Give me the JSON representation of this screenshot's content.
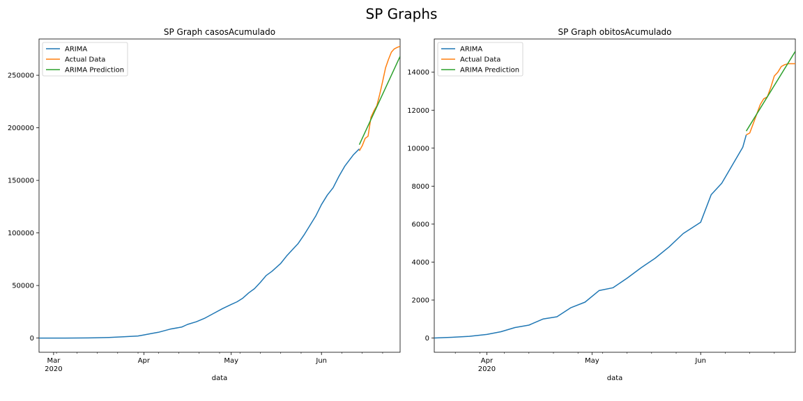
{
  "figure": {
    "suptitle": "SP Graphs"
  },
  "chart_data": [
    {
      "type": "line",
      "title": "SP Graph casosAcumulado",
      "xlabel": "data",
      "ylabel": "",
      "xlim": [
        "2020-02-25",
        "2020-06-28"
      ],
      "ylim": [
        -13500,
        284500
      ],
      "grid": false,
      "legend": "top-left",
      "x_ticks": [
        {
          "date": "2020-03-01",
          "label": "Mar",
          "sublabel": "2020"
        },
        {
          "date": "2020-04-01",
          "label": "Apr",
          "sublabel": ""
        },
        {
          "date": "2020-05-01",
          "label": "May",
          "sublabel": ""
        },
        {
          "date": "2020-06-01",
          "label": "Jun",
          "sublabel": ""
        }
      ],
      "y_ticks": [
        0,
        50000,
        100000,
        150000,
        200000,
        250000
      ],
      "y_tick_labels": [
        "0",
        "50000",
        "100000",
        "150000",
        "200000",
        "250000"
      ],
      "series": [
        {
          "name": "ARIMA",
          "color": "#1f77b4",
          "x": [
            "2020-02-25",
            "2020-03-05",
            "2020-03-15",
            "2020-03-20",
            "2020-03-25",
            "2020-03-30",
            "2020-04-01",
            "2020-04-04",
            "2020-04-06",
            "2020-04-10",
            "2020-04-14",
            "2020-04-16",
            "2020-04-19",
            "2020-04-22",
            "2020-04-25",
            "2020-04-28",
            "2020-05-01",
            "2020-05-03",
            "2020-05-05",
            "2020-05-07",
            "2020-05-09",
            "2020-05-11",
            "2020-05-13",
            "2020-05-15",
            "2020-05-18",
            "2020-05-20",
            "2020-05-22",
            "2020-05-24",
            "2020-05-26",
            "2020-05-28",
            "2020-05-30",
            "2020-06-01",
            "2020-06-03",
            "2020-06-05",
            "2020-06-07",
            "2020-06-09",
            "2020-06-12",
            "2020-06-14"
          ],
          "y": [
            0,
            0,
            200,
            600,
            1200,
            2000,
            3000,
            4500,
            5500,
            8500,
            10500,
            13000,
            15500,
            19000,
            23500,
            28000,
            32000,
            34500,
            38000,
            43000,
            47000,
            53000,
            59500,
            63500,
            71000,
            78000,
            84000,
            90000,
            98000,
            107000,
            116000,
            127000,
            136000,
            143000,
            154000,
            163500,
            174500,
            180000
          ]
        },
        {
          "name": "Actual Data",
          "color": "#ff7f0e",
          "x": [
            "2020-06-14",
            "2020-06-15",
            "2020-06-16",
            "2020-06-17",
            "2020-06-18",
            "2020-06-19",
            "2020-06-20",
            "2020-06-21",
            "2020-06-22",
            "2020-06-23",
            "2020-06-24",
            "2020-06-25",
            "2020-06-26",
            "2020-06-27",
            "2020-06-28"
          ],
          "y": [
            178000,
            183000,
            190000,
            192000,
            210000,
            216000,
            221000,
            232000,
            244000,
            257000,
            265000,
            272000,
            275000,
            276500,
            277500
          ]
        },
        {
          "name": "ARIMA Prediction",
          "color": "#2ca02c",
          "x": [
            "2020-06-14",
            "2020-06-28"
          ],
          "y": [
            184000,
            268000
          ]
        }
      ]
    },
    {
      "type": "line",
      "title": "SP Graph obitosAcumulado",
      "xlabel": "data",
      "ylabel": "",
      "xlim": [
        "2020-03-17",
        "2020-06-28"
      ],
      "ylim": [
        -750,
        15750
      ],
      "grid": false,
      "legend": "top-left",
      "x_ticks": [
        {
          "date": "2020-04-01",
          "label": "Apr",
          "sublabel": "2020"
        },
        {
          "date": "2020-05-01",
          "label": "May",
          "sublabel": ""
        },
        {
          "date": "2020-06-01",
          "label": "Jun",
          "sublabel": ""
        }
      ],
      "y_ticks": [
        0,
        2000,
        4000,
        6000,
        8000,
        10000,
        12000,
        14000
      ],
      "y_tick_labels": [
        "0",
        "2000",
        "4000",
        "6000",
        "8000",
        "10000",
        "12000",
        "14000"
      ],
      "series": [
        {
          "name": "ARIMA",
          "color": "#1f77b4",
          "x": [
            "2020-03-17",
            "2020-03-22",
            "2020-03-27",
            "2020-04-01",
            "2020-04-05",
            "2020-04-09",
            "2020-04-13",
            "2020-04-17",
            "2020-04-21",
            "2020-04-25",
            "2020-04-29",
            "2020-05-03",
            "2020-05-07",
            "2020-05-11",
            "2020-05-15",
            "2020-05-19",
            "2020-05-23",
            "2020-05-27",
            "2020-06-01",
            "2020-06-04",
            "2020-06-07",
            "2020-06-10",
            "2020-06-13",
            "2020-06-14"
          ],
          "y": [
            0,
            40,
            90,
            190,
            330,
            550,
            680,
            1000,
            1120,
            1600,
            1890,
            2500,
            2650,
            3150,
            3700,
            4200,
            4800,
            5500,
            6100,
            7550,
            8150,
            9100,
            10050,
            10700
          ]
        },
        {
          "name": "Actual Data",
          "color": "#ff7f0e",
          "x": [
            "2020-06-14",
            "2020-06-15",
            "2020-06-16",
            "2020-06-17",
            "2020-06-18",
            "2020-06-19",
            "2020-06-20",
            "2020-06-21",
            "2020-06-22",
            "2020-06-23",
            "2020-06-24",
            "2020-06-25",
            "2020-06-26",
            "2020-06-27",
            "2020-06-28"
          ],
          "y": [
            10700,
            10800,
            11300,
            11800,
            12300,
            12600,
            12700,
            13200,
            13800,
            14000,
            14300,
            14400,
            14450,
            14450,
            14450
          ]
        },
        {
          "name": "ARIMA Prediction",
          "color": "#2ca02c",
          "x": [
            "2020-06-14",
            "2020-06-28"
          ],
          "y": [
            10900,
            15100
          ]
        }
      ]
    }
  ]
}
